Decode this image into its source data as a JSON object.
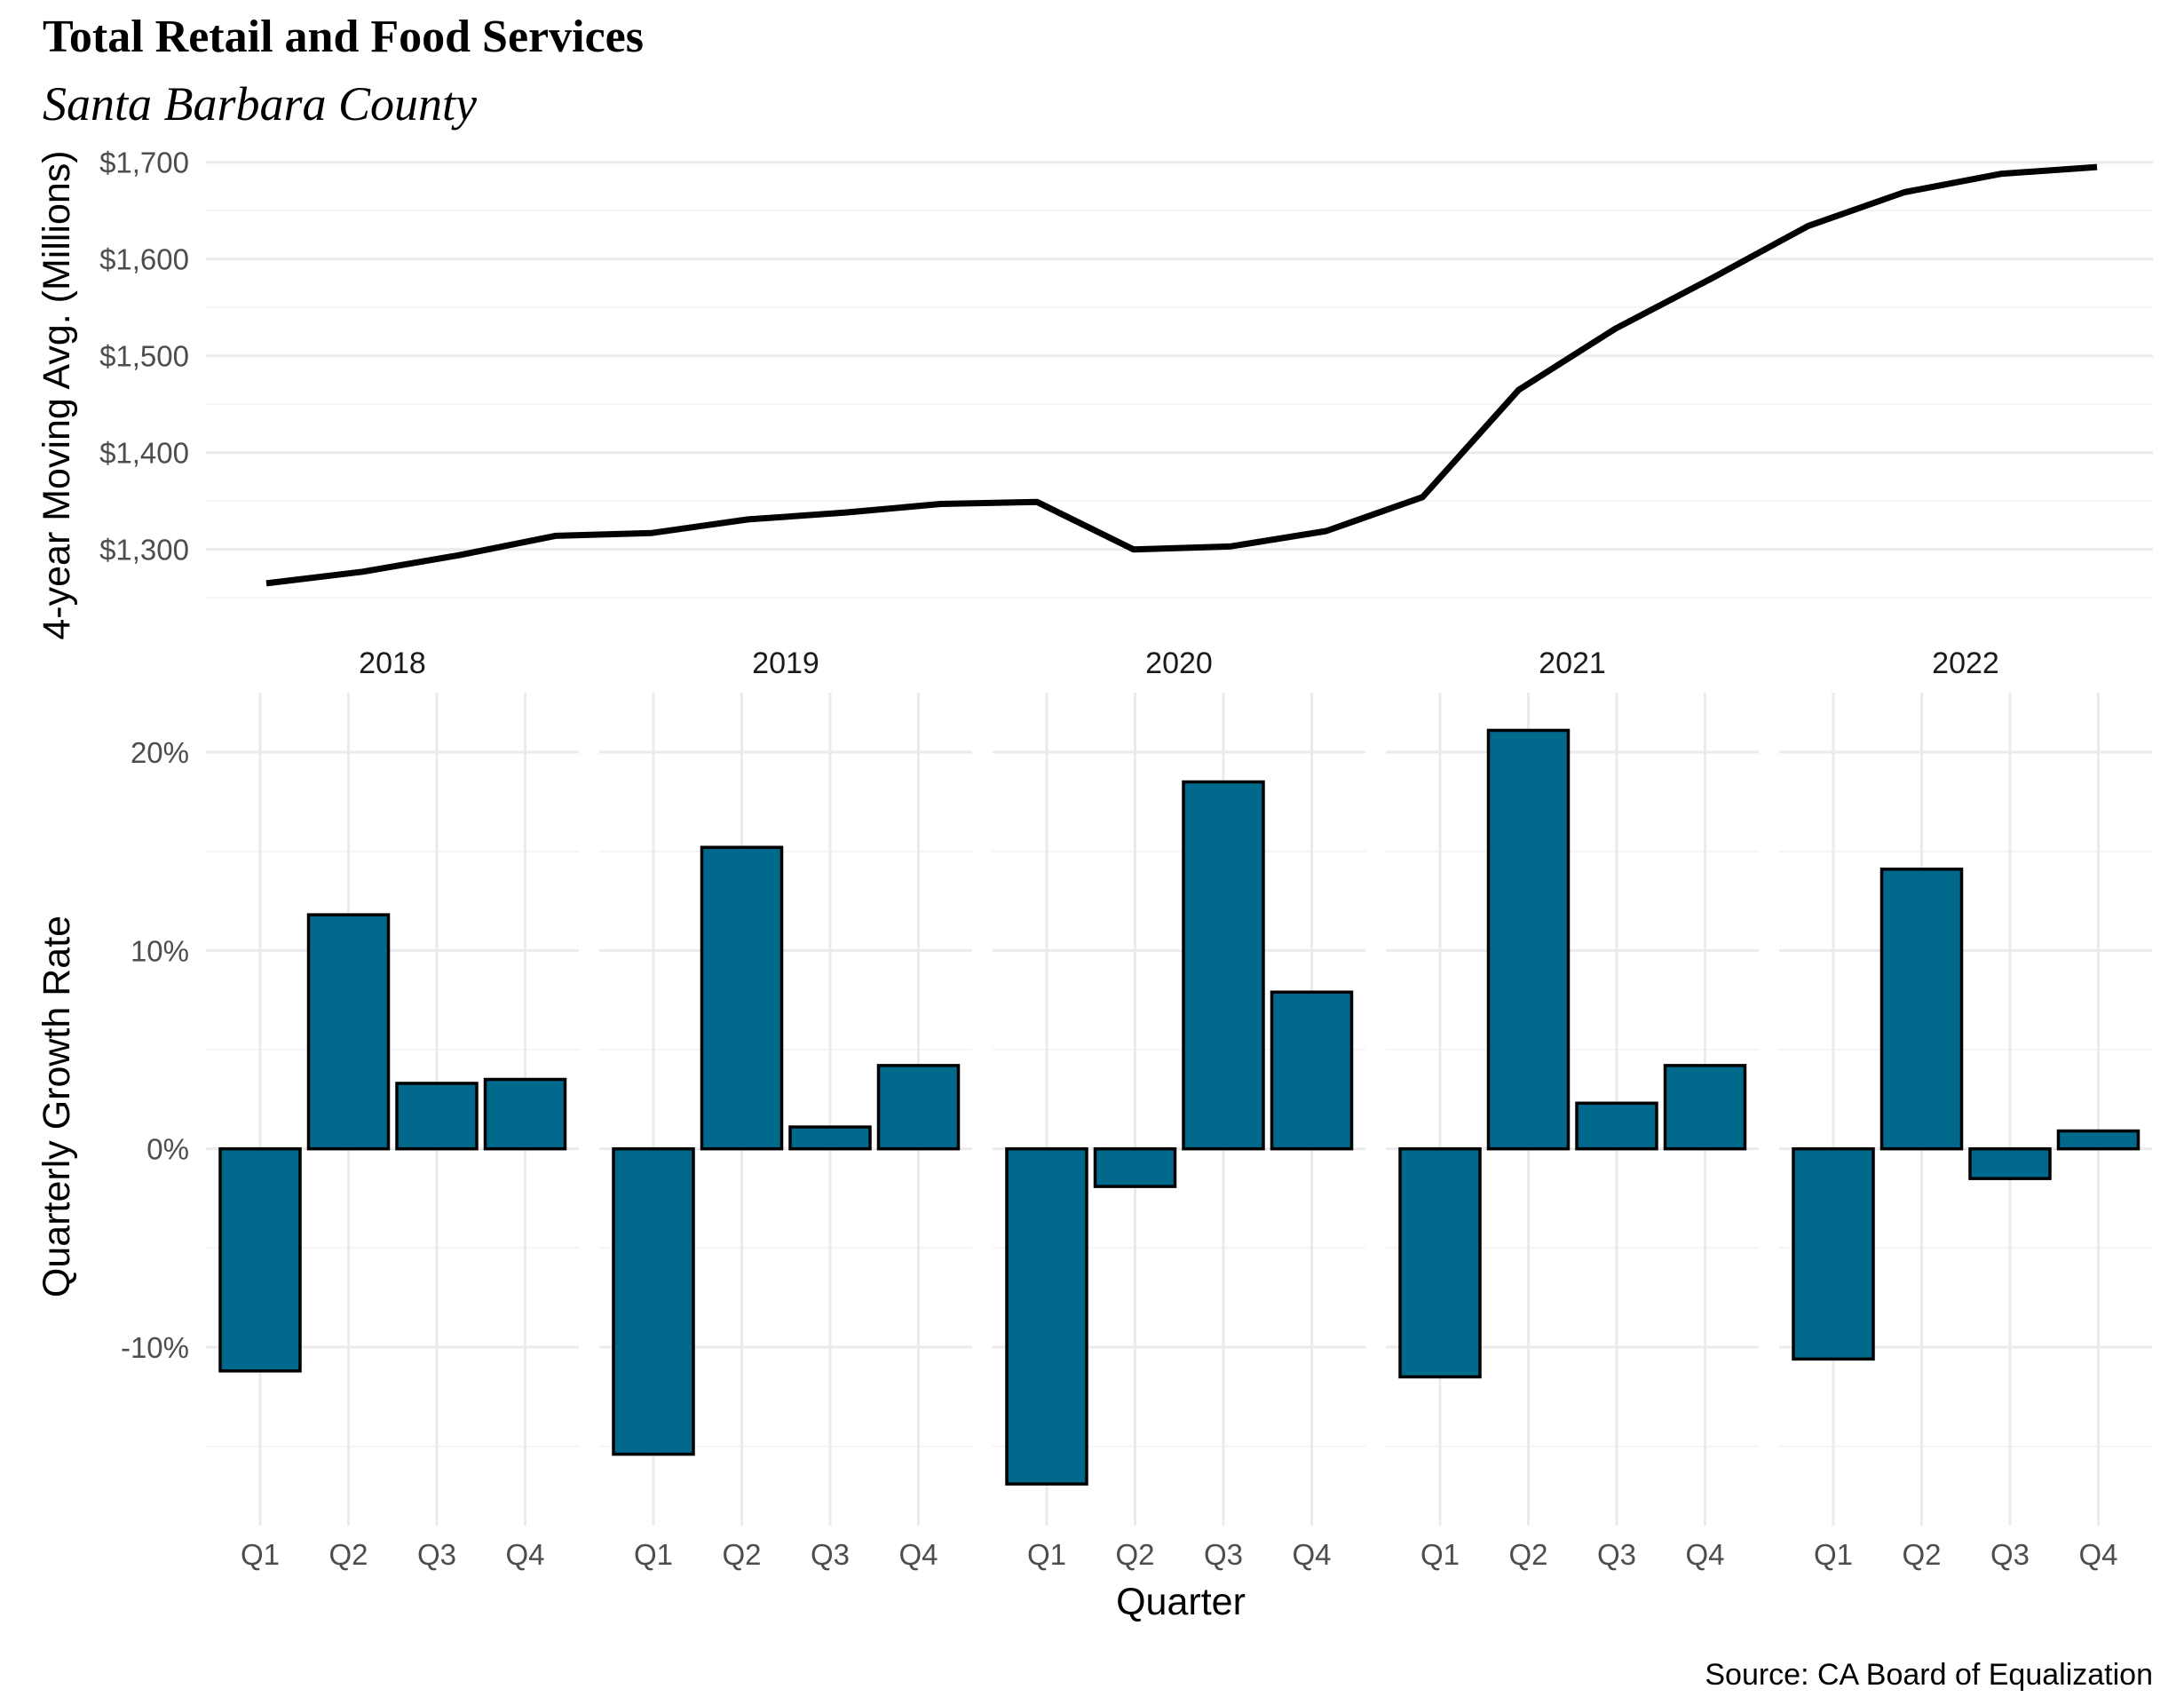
{
  "title": "Total Retail and Food Services",
  "subtitle": "Santa Barbara County",
  "caption": "Source: CA Board of Equalization",
  "colors": {
    "bar_fill": "#00698c",
    "bar_outline": "#000000",
    "line": "#000000",
    "grid": "#ebebeb"
  },
  "chart_data": [
    {
      "type": "line",
      "ylabel": "4-year Moving Avg. (Millions)",
      "xlabel": "",
      "ylim": [
        1265,
        1712
      ],
      "y_ticks": [
        1300,
        1400,
        1500,
        1600,
        1700
      ],
      "y_tick_labels": [
        "$1,300",
        "$1,400",
        "$1,500",
        "$1,600",
        "$1,700"
      ],
      "grid": true,
      "x": [
        "2018 Q1",
        "2018 Q2",
        "2018 Q3",
        "2018 Q4",
        "2019 Q1",
        "2019 Q2",
        "2019 Q3",
        "2019 Q4",
        "2020 Q1",
        "2020 Q2",
        "2020 Q3",
        "2020 Q4",
        "2021 Q1",
        "2021 Q2",
        "2021 Q3",
        "2021 Q4",
        "2022 Q1",
        "2022 Q2",
        "2022 Q3",
        "2022 Q4"
      ],
      "series": [
        {
          "values": [
            1265,
            1277,
            1294,
            1314,
            1317,
            1331,
            1338,
            1347,
            1349,
            1300,
            1303,
            1319,
            1354,
            1465,
            1528,
            1580,
            1634,
            1669,
            1688,
            1695
          ]
        }
      ]
    },
    {
      "type": "bar",
      "ylabel": "Quarterly Growth Rate",
      "xlabel": "Quarter",
      "ylim": [
        -19,
        23
      ],
      "y_ticks": [
        -10,
        0,
        10,
        20
      ],
      "y_tick_labels": [
        "-10%",
        "0%",
        "10%",
        "20%"
      ],
      "grid": true,
      "facets": [
        "2018",
        "2019",
        "2020",
        "2021",
        "2022"
      ],
      "categories": [
        "Q1",
        "Q2",
        "Q3",
        "Q4"
      ],
      "series": [
        {
          "facet": "2018",
          "values": [
            -11.2,
            11.8,
            3.3,
            3.5
          ]
        },
        {
          "facet": "2019",
          "values": [
            -15.4,
            15.2,
            1.1,
            4.2
          ]
        },
        {
          "facet": "2020",
          "values": [
            -16.9,
            -1.9,
            18.5,
            7.9
          ]
        },
        {
          "facet": "2021",
          "values": [
            -11.5,
            21.1,
            2.3,
            4.2
          ]
        },
        {
          "facet": "2022",
          "values": [
            -10.6,
            14.1,
            -1.5,
            0.9
          ]
        }
      ]
    }
  ]
}
